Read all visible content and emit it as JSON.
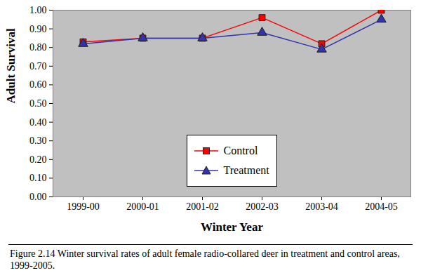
{
  "chart_data": {
    "type": "line",
    "title": "Figure 2.14  Winter survival rates of adult female radio-collared deer in treatment and control areas, 1999-2005.",
    "x_label": "Winter Year",
    "y_label": "Adult Survival",
    "categories": [
      "1999-00",
      "2000-01",
      "2001-02",
      "2002-03",
      "2003-04",
      "2004-05"
    ],
    "series": [
      {
        "name": "Control",
        "color": "#ff0000",
        "marker": "square",
        "values": [
          0.83,
          0.85,
          0.85,
          0.96,
          0.82,
          1.0
        ]
      },
      {
        "name": "Treatment",
        "color": "#3333aa",
        "marker": "triangle",
        "values": [
          0.82,
          0.85,
          0.85,
          0.88,
          0.79,
          0.95
        ]
      }
    ],
    "ylim": [
      0,
      1
    ],
    "yticks": [
      {
        "value": 0,
        "label": "0.00"
      },
      {
        "value": 0.1,
        "label": "0.10"
      },
      {
        "value": 0.2,
        "label": "0.20"
      },
      {
        "value": 0.3,
        "label": "0.30"
      },
      {
        "value": 0.4,
        "label": "0.40"
      },
      {
        "value": 0.5,
        "label": "0.50"
      },
      {
        "value": 0.6,
        "label": "0.60"
      },
      {
        "value": 0.7,
        "label": "0.70"
      },
      {
        "value": 0.8,
        "label": "0.80"
      },
      {
        "value": 0.9,
        "label": "0.90"
      },
      {
        "value": 1,
        "label": "1.00"
      }
    ],
    "grid": false,
    "legend": "bottom"
  }
}
